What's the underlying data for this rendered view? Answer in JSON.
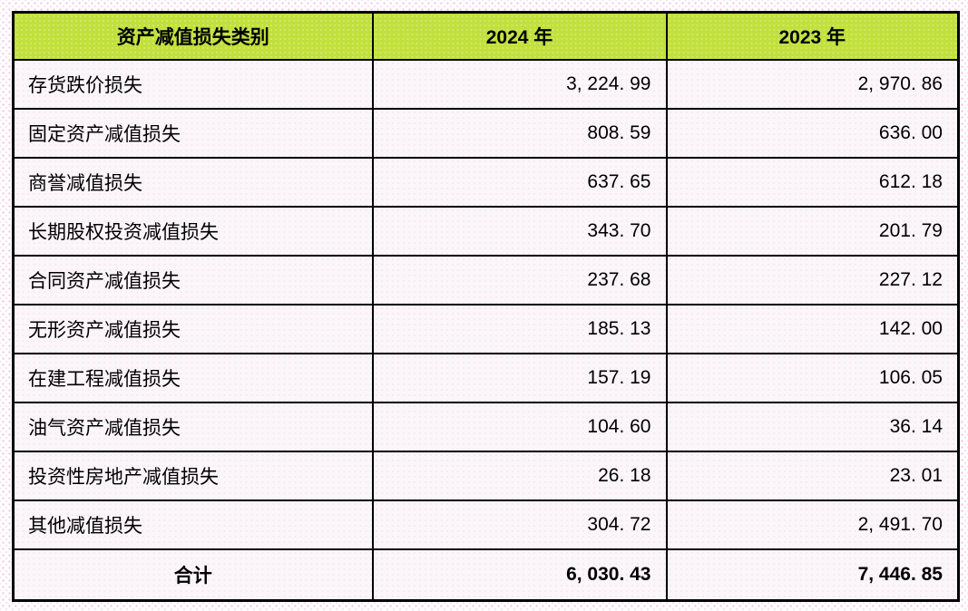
{
  "table": {
    "columns": {
      "category": "资产减值损失类别",
      "y2024": "2024 年",
      "y2023": "2023 年"
    },
    "rows": [
      {
        "label": "存货跌价损失",
        "v2024": "3, 224. 99",
        "v2023": "2, 970. 86"
      },
      {
        "label": "固定资产减值损失",
        "v2024": "808. 59",
        "v2023": "636. 00"
      },
      {
        "label": "商誉减值损失",
        "v2024": "637. 65",
        "v2023": "612. 18"
      },
      {
        "label": "长期股权投资减值损失",
        "v2024": "343. 70",
        "v2023": "201. 79"
      },
      {
        "label": "合同资产减值损失",
        "v2024": "237. 68",
        "v2023": "227. 12"
      },
      {
        "label": "无形资产减值损失",
        "v2024": "185. 13",
        "v2023": "142. 00"
      },
      {
        "label": "在建工程减值损失",
        "v2024": "157. 19",
        "v2023": "106. 05"
      },
      {
        "label": "油气资产减值损失",
        "v2024": "104. 60",
        "v2023": "36. 14"
      },
      {
        "label": "投资性房地产减值损失",
        "v2024": "26. 18",
        "v2023": "23. 01"
      },
      {
        "label": "其他减值损失",
        "v2024": "304. 72",
        "v2023": "2, 491. 70"
      }
    ],
    "total": {
      "label": "合计",
      "v2024": "6, 030. 43",
      "v2023": "7, 446. 85"
    }
  },
  "colors": {
    "header_bg": "#c1e03c",
    "border": "#000000",
    "cell_bg": "#fbf6f9",
    "page_dot": "#ee96ce"
  },
  "chart_data": {
    "type": "table",
    "title": "资产减值损失类别",
    "categories": [
      "存货跌价损失",
      "固定资产减值损失",
      "商誉减值损失",
      "长期股权投资减值损失",
      "合同资产减值损失",
      "无形资产减值损失",
      "在建工程减值损失",
      "油气资产减值损失",
      "投资性房地产减值损失",
      "其他减值损失",
      "合计"
    ],
    "series": [
      {
        "name": "2024 年",
        "values": [
          3224.99,
          808.59,
          637.65,
          343.7,
          237.68,
          185.13,
          157.19,
          104.6,
          26.18,
          304.72,
          6030.43
        ]
      },
      {
        "name": "2023 年",
        "values": [
          2970.86,
          636.0,
          612.18,
          201.79,
          227.12,
          142.0,
          106.05,
          36.14,
          23.01,
          2491.7,
          7446.85
        ]
      }
    ]
  }
}
